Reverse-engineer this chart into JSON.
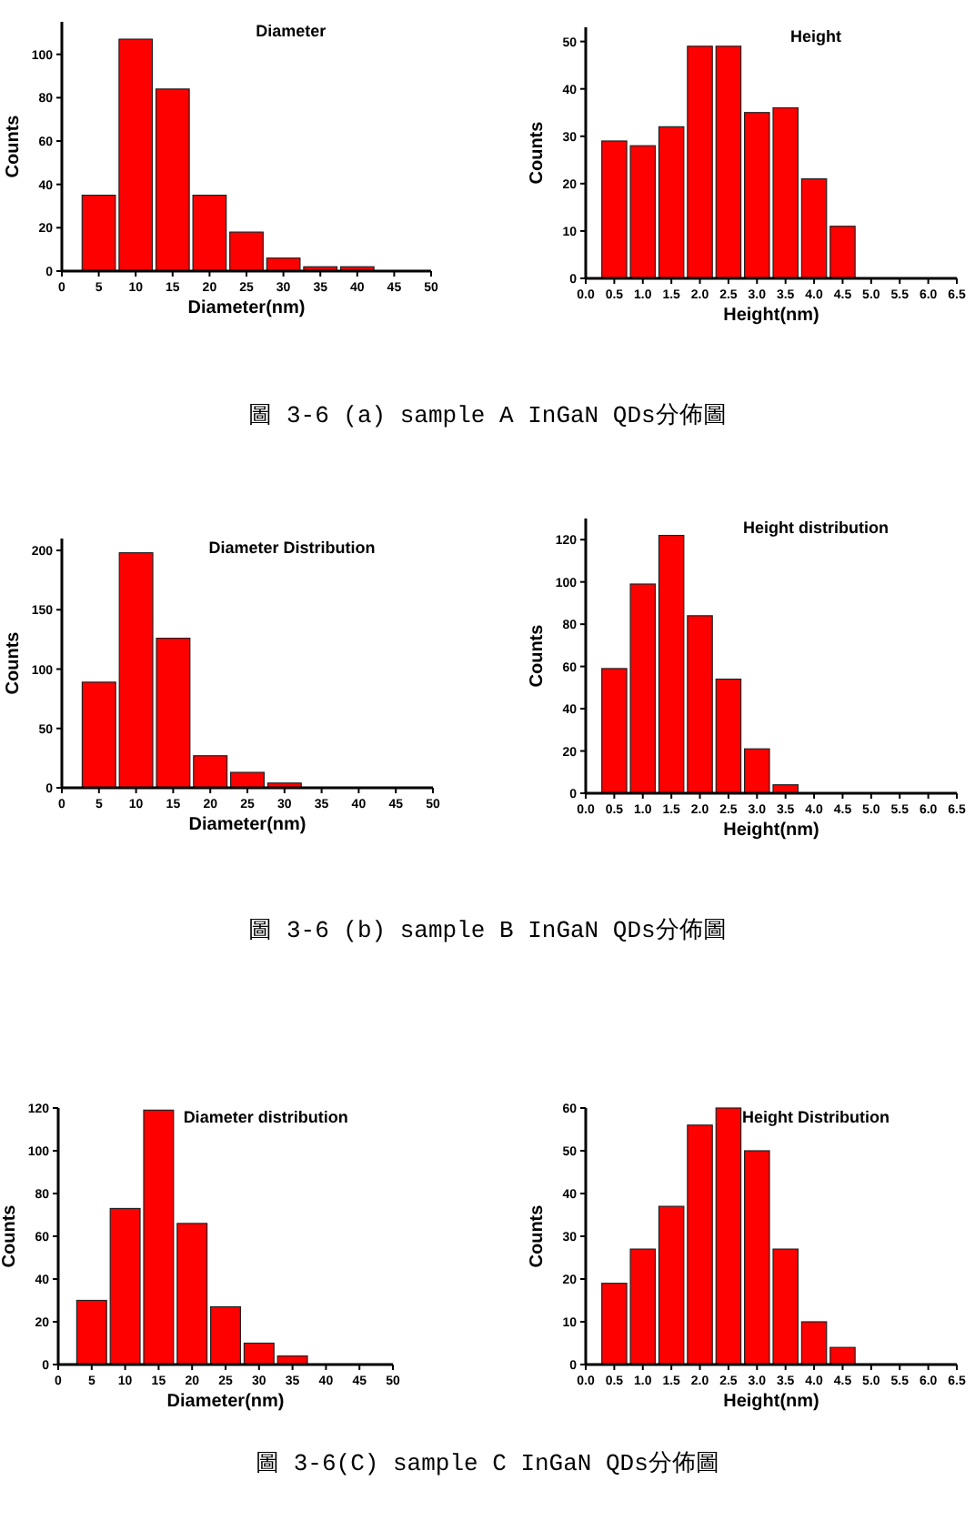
{
  "chart_data": [
    {
      "type": "histogram",
      "title": "Diameter",
      "xlabel": "Diameter(nm)",
      "ylabel": "Counts",
      "color": "#ff0000",
      "bins": [
        2.5,
        7.5,
        12.5,
        17.5,
        22.5,
        27.5,
        32.5,
        37.5,
        42.5
      ],
      "values": [
        35,
        107,
        84,
        35,
        18,
        6,
        2,
        2
      ],
      "xlim": [
        0,
        50
      ],
      "xticks": [
        0,
        5,
        10,
        15,
        20,
        25,
        30,
        35,
        40,
        45,
        50
      ],
      "ylim": [
        0,
        115
      ],
      "yticks": [
        0,
        20,
        40,
        60,
        80,
        100
      ],
      "annotations": [
        "圖 3-6 (a) sample A InGaN QDs分佈圖"
      ]
    },
    {
      "type": "histogram",
      "title": "Height",
      "xlabel": "Height(nm)",
      "ylabel": "Counts",
      "color": "#ff0000",
      "bins": [
        0.25,
        0.75,
        1.25,
        1.75,
        2.25,
        2.75,
        3.25,
        3.75,
        4.25,
        4.75
      ],
      "values": [
        29,
        28,
        32,
        49,
        49,
        35,
        36,
        21,
        11
      ],
      "xlim": [
        0,
        6.5
      ],
      "xticks": [
        {
          "value": 0,
          "label": "0.0"
        },
        {
          "value": 0.5,
          "label": "0.5"
        },
        {
          "value": 1,
          "label": "1.0"
        },
        {
          "value": 1.5,
          "label": "1.5"
        },
        {
          "value": 2,
          "label": "2.0"
        },
        {
          "value": 2.5,
          "label": "2.5"
        },
        {
          "value": 3,
          "label": "3.0"
        },
        {
          "value": 3.5,
          "label": "3.5"
        },
        {
          "value": 4,
          "label": "4.0"
        },
        {
          "value": 4.5,
          "label": "4.5"
        },
        {
          "value": 5,
          "label": "5.0"
        },
        {
          "value": 5.5,
          "label": "5.5"
        },
        {
          "value": 6,
          "label": "6.0"
        },
        {
          "value": 6.5,
          "label": "6.5"
        }
      ],
      "ylim": [
        0,
        53
      ],
      "yticks": [
        0,
        10,
        20,
        30,
        40,
        50
      ]
    },
    {
      "type": "histogram",
      "title": "Diameter Distribution",
      "xlabel": "Diameter(nm)",
      "ylabel": "Counts",
      "color": "#ff0000",
      "bins": [
        2.5,
        7.5,
        12.5,
        17.5,
        22.5,
        27.5,
        32.5
      ],
      "values": [
        89,
        198,
        126,
        27,
        13,
        4
      ],
      "xlim": [
        0,
        50
      ],
      "xticks": [
        0,
        5,
        10,
        15,
        20,
        25,
        30,
        35,
        40,
        45,
        50
      ],
      "ylim": [
        0,
        210
      ],
      "yticks": [
        0,
        50,
        100,
        150,
        200
      ],
      "annotations": [
        "圖 3-6 (b) sample B InGaN QDs分佈圖"
      ]
    },
    {
      "type": "histogram",
      "title": "Height distribution",
      "xlabel": "Height(nm)",
      "ylabel": "Counts",
      "color": "#ff0000",
      "bins": [
        0.25,
        0.75,
        1.25,
        1.75,
        2.25,
        2.75,
        3.25,
        3.75
      ],
      "values": [
        59,
        99,
        122,
        84,
        54,
        21,
        4
      ],
      "xlim": [
        0,
        6.5
      ],
      "xticks": [
        {
          "value": 0,
          "label": "0.0"
        },
        {
          "value": 0.5,
          "label": "0.5"
        },
        {
          "value": 1,
          "label": "1.0"
        },
        {
          "value": 1.5,
          "label": "1.5"
        },
        {
          "value": 2,
          "label": "2.0"
        },
        {
          "value": 2.5,
          "label": "2.5"
        },
        {
          "value": 3,
          "label": "3.0"
        },
        {
          "value": 3.5,
          "label": "3.5"
        },
        {
          "value": 4,
          "label": "4.0"
        },
        {
          "value": 4.5,
          "label": "4.5"
        },
        {
          "value": 5,
          "label": "5.0"
        },
        {
          "value": 5.5,
          "label": "5.5"
        },
        {
          "value": 6,
          "label": "6.0"
        },
        {
          "value": 6.5,
          "label": "6.5"
        }
      ],
      "ylim": [
        0,
        130
      ],
      "yticks": [
        0,
        20,
        40,
        60,
        80,
        100,
        120
      ]
    },
    {
      "type": "histogram",
      "title": "Diameter distribution",
      "xlabel": "Diameter(nm)",
      "ylabel": "Counts",
      "color": "#ff0000",
      "bins": [
        2.5,
        7.5,
        12.5,
        17.5,
        22.5,
        27.5,
        32.5,
        37.5
      ],
      "values": [
        30,
        73,
        119,
        66,
        27,
        10,
        4
      ],
      "xlim": [
        0,
        50
      ],
      "xticks": [
        0,
        5,
        10,
        15,
        20,
        25,
        30,
        35,
        40,
        45,
        50
      ],
      "ylim": [
        0,
        120
      ],
      "yticks": [
        0,
        20,
        40,
        60,
        80,
        100,
        120
      ],
      "annotations": [
        "圖 3-6(C) sample C InGaN QDs分佈圖"
      ]
    },
    {
      "type": "histogram",
      "title": "Height Distribution",
      "xlabel": "Height(nm)",
      "ylabel": "Counts",
      "color": "#ff0000",
      "bins": [
        0.25,
        0.75,
        1.25,
        1.75,
        2.25,
        2.75,
        3.25,
        3.75,
        4.25,
        4.75
      ],
      "values": [
        19,
        27,
        37,
        56,
        60,
        50,
        27,
        10,
        4
      ],
      "xlim": [
        0,
        6.5
      ],
      "xticks": [
        {
          "value": 0,
          "label": "0.0"
        },
        {
          "value": 0.5,
          "label": "0.5"
        },
        {
          "value": 1,
          "label": "1.0"
        },
        {
          "value": 1.5,
          "label": "1.5"
        },
        {
          "value": 2,
          "label": "2.0"
        },
        {
          "value": 2.5,
          "label": "2.5"
        },
        {
          "value": 3,
          "label": "3.0"
        },
        {
          "value": 3.5,
          "label": "3.5"
        },
        {
          "value": 4,
          "label": "4.0"
        },
        {
          "value": 4.5,
          "label": "4.5"
        },
        {
          "value": 5,
          "label": "5.0"
        },
        {
          "value": 5.5,
          "label": "5.5"
        },
        {
          "value": 6,
          "label": "6.0"
        },
        {
          "value": 6.5,
          "label": "6.5"
        }
      ],
      "ylim": [
        0,
        60
      ],
      "yticks": [
        0,
        10,
        20,
        30,
        40,
        50,
        60
      ]
    }
  ]
}
